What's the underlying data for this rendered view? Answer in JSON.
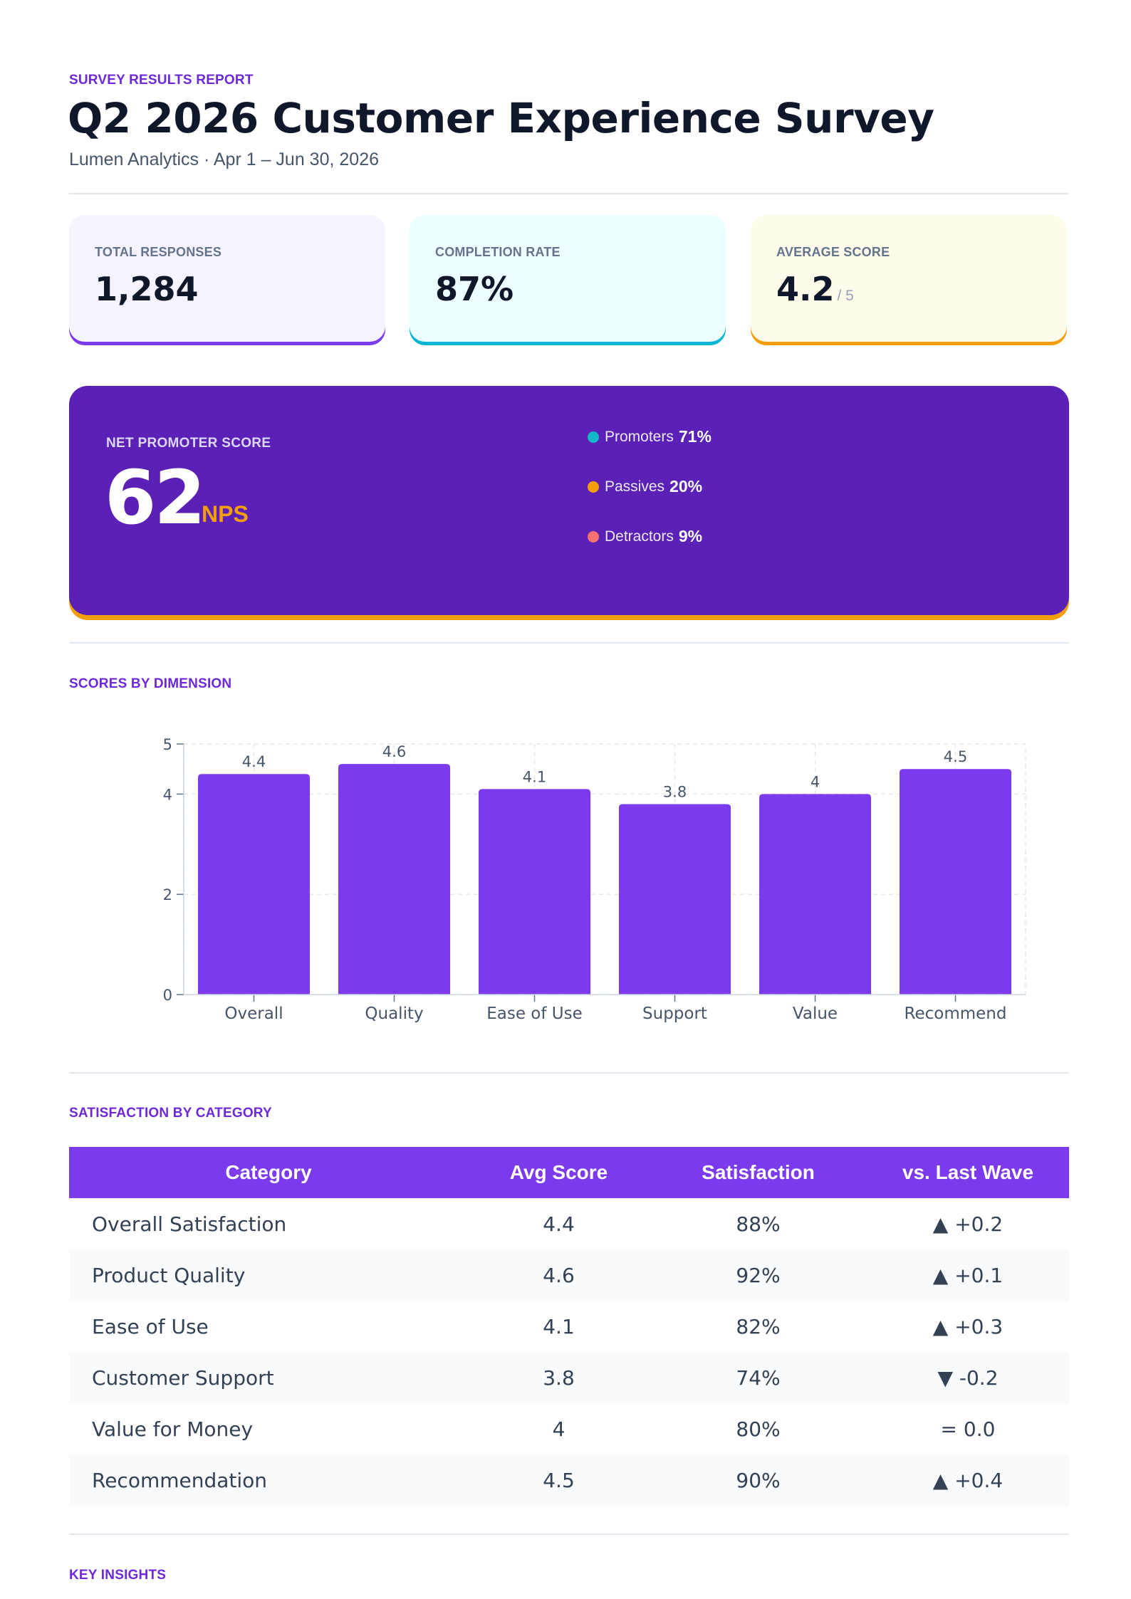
{
  "header": {
    "eyebrow": "SURVEY RESULTS REPORT",
    "title": "Q2 2026 Customer Experience Survey",
    "subtitle": "Lumen Analytics · Apr 1 – Jun 30, 2026"
  },
  "kpis": [
    {
      "label": "TOTAL RESPONSES",
      "value": "1,284",
      "unit": "",
      "bg": "#f5f3ff",
      "accent": "#7c3aed"
    },
    {
      "label": "COMPLETION RATE",
      "value": "87%",
      "unit": "",
      "bg": "#ecfeff",
      "accent": "#06b6d4"
    },
    {
      "label": "AVERAGE SCORE",
      "value": "4.2",
      "unit": "/ 5",
      "bg": "#fffbeb",
      "accent": "#f59e0b"
    }
  ],
  "nps": {
    "label": "NET PROMOTER SCORE",
    "value": "62",
    "unit": "NPS",
    "breakdown": [
      {
        "label": "Promoters",
        "pct": "71%",
        "color": "#14b8c6"
      },
      {
        "label": "Passives",
        "pct": "20%",
        "color": "#f59e0b"
      },
      {
        "label": "Detractors",
        "pct": "9%",
        "color": "#f87171"
      }
    ]
  },
  "sections": {
    "scores": "SCORES BY DIMENSION",
    "satisfaction": "SATISFACTION BY CATEGORY",
    "insights": "KEY INSIGHTS"
  },
  "chart_data": {
    "type": "bar",
    "categories": [
      "Overall",
      "Quality",
      "Ease of Use",
      "Support",
      "Value",
      "Recommend"
    ],
    "values": [
      4.4,
      4.6,
      4.1,
      3.8,
      4,
      4.5
    ],
    "data_labels": [
      "4.4",
      "4.6",
      "4.1",
      "3.8",
      "4",
      "4.5"
    ],
    "yticks": [
      "0",
      "2",
      "4",
      "5"
    ],
    "ylim": [
      0,
      5
    ],
    "grid": true,
    "bar_color": "#7c3aed",
    "title": "",
    "xlabel": "",
    "ylabel": ""
  },
  "table": {
    "headers": [
      "Category",
      "Avg Score",
      "Satisfaction",
      "vs. Last Wave"
    ],
    "rows": [
      [
        "Overall Satisfaction",
        "4.4",
        "88%",
        "▲ +0.2"
      ],
      [
        "Product Quality",
        "4.6",
        "92%",
        "▲ +0.1"
      ],
      [
        "Ease of Use",
        "4.1",
        "82%",
        "▲ +0.3"
      ],
      [
        "Customer Support",
        "3.8",
        "74%",
        "▼ -0.2"
      ],
      [
        "Value for Money",
        "4",
        "80%",
        "= 0.0"
      ],
      [
        "Recommendation",
        "4.5",
        "90%",
        "▲ +0.4"
      ]
    ]
  }
}
